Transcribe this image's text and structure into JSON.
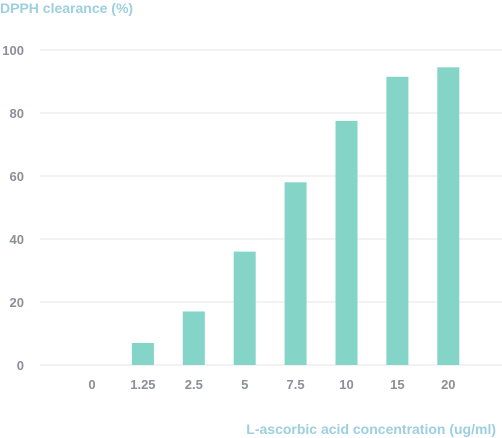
{
  "chart_data": {
    "type": "bar",
    "ylabel": "DPPH clearance (%)",
    "xlabel": "L-ascorbic acid concentration (ug/ml)",
    "categories": [
      "0",
      "1.25",
      "2.5",
      "5",
      "7.5",
      "10",
      "15",
      "20"
    ],
    "values": [
      0,
      7,
      17,
      36,
      58,
      77.5,
      91.5,
      94.5
    ],
    "ylim": [
      0,
      100
    ],
    "yticks": [
      "0",
      "20",
      "40",
      "60",
      "80",
      "100"
    ],
    "grid": true,
    "bar_color": "#84d4c8",
    "grid_color": "#e6e6e6"
  }
}
